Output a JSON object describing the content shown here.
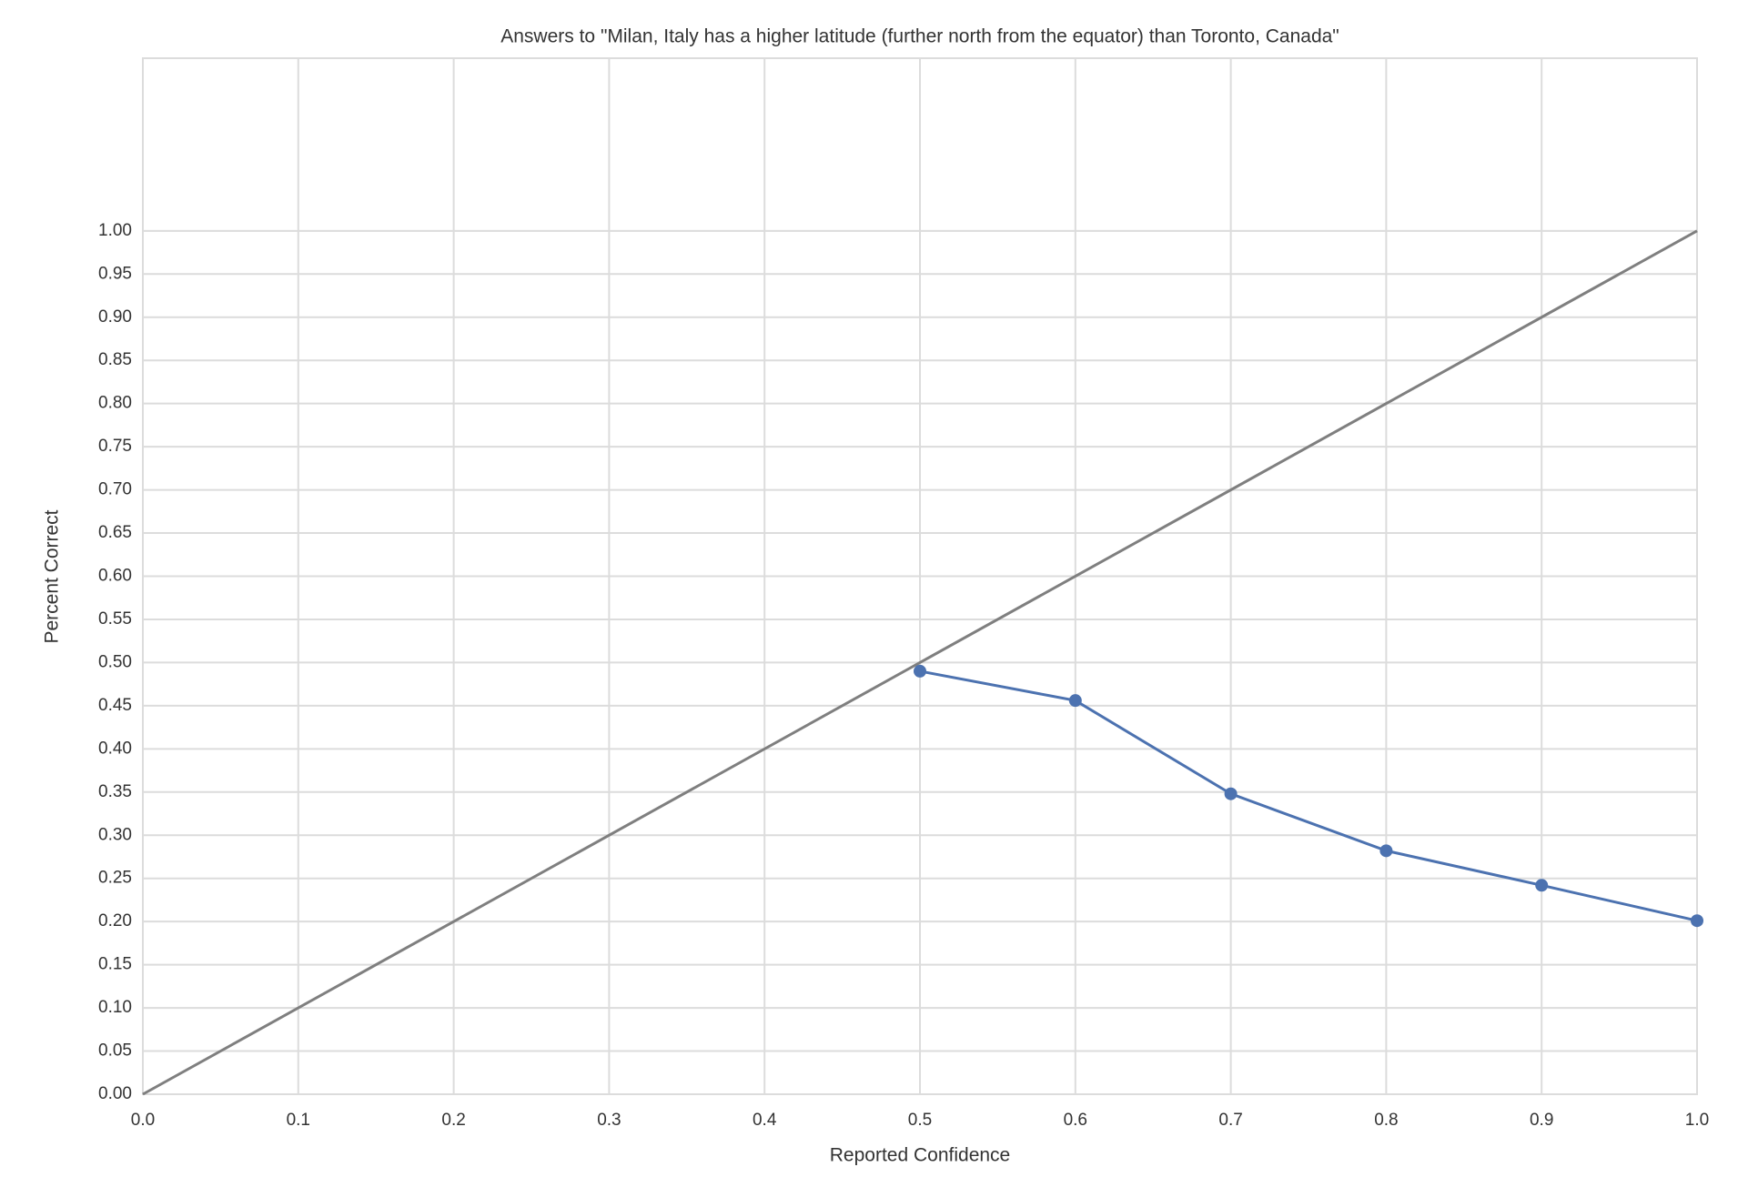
{
  "chart_data": {
    "type": "line",
    "title": "Answers to \"Milan, Italy has a higher latitude (further north from the equator) than Toronto, Canada\"",
    "xlabel": "Reported Confidence",
    "ylabel": "Percent Correct",
    "xlim": [
      0,
      1
    ],
    "ylim": [
      0,
      1.2
    ],
    "xticks": [
      {
        "value": 0,
        "label": "0.0"
      },
      {
        "value": 0.1,
        "label": "0.1"
      },
      {
        "value": 0.2,
        "label": "0.2"
      },
      {
        "value": 0.3,
        "label": "0.3"
      },
      {
        "value": 0.4,
        "label": "0.4"
      },
      {
        "value": 0.5,
        "label": "0.5"
      },
      {
        "value": 0.6,
        "label": "0.6"
      },
      {
        "value": 0.7,
        "label": "0.7"
      },
      {
        "value": 0.8,
        "label": "0.8"
      },
      {
        "value": 0.9,
        "label": "0.9"
      },
      {
        "value": 1,
        "label": "1.0"
      }
    ],
    "yticks": [
      {
        "value": 0,
        "label": "0.00"
      },
      {
        "value": 0.05,
        "label": "0.05"
      },
      {
        "value": 0.1,
        "label": "0.10"
      },
      {
        "value": 0.15,
        "label": "0.15"
      },
      {
        "value": 0.2,
        "label": "0.20"
      },
      {
        "value": 0.25,
        "label": "0.25"
      },
      {
        "value": 0.3,
        "label": "0.30"
      },
      {
        "value": 0.35,
        "label": "0.35"
      },
      {
        "value": 0.4,
        "label": "0.40"
      },
      {
        "value": 0.45,
        "label": "0.45"
      },
      {
        "value": 0.5,
        "label": "0.50"
      },
      {
        "value": 0.55,
        "label": "0.55"
      },
      {
        "value": 0.6,
        "label": "0.60"
      },
      {
        "value": 0.65,
        "label": "0.65"
      },
      {
        "value": 0.7,
        "label": "0.70"
      },
      {
        "value": 0.75,
        "label": "0.75"
      },
      {
        "value": 0.8,
        "label": "0.80"
      },
      {
        "value": 0.85,
        "label": "0.85"
      },
      {
        "value": 0.9,
        "label": "0.90"
      },
      {
        "value": 0.95,
        "label": "0.95"
      },
      {
        "value": 1,
        "label": "1.00"
      }
    ],
    "grid": true,
    "series": [
      {
        "color": "#7f7f7f",
        "marker": false,
        "x": [
          0,
          1
        ],
        "values": [
          0,
          1
        ]
      },
      {
        "color": "#4c72b0",
        "marker": true,
        "x": [
          0.5,
          0.6,
          0.7,
          0.8,
          0.9,
          1.0
        ],
        "values": [
          0.49,
          0.456,
          0.348,
          0.282,
          0.242,
          0.201
        ]
      }
    ]
  }
}
